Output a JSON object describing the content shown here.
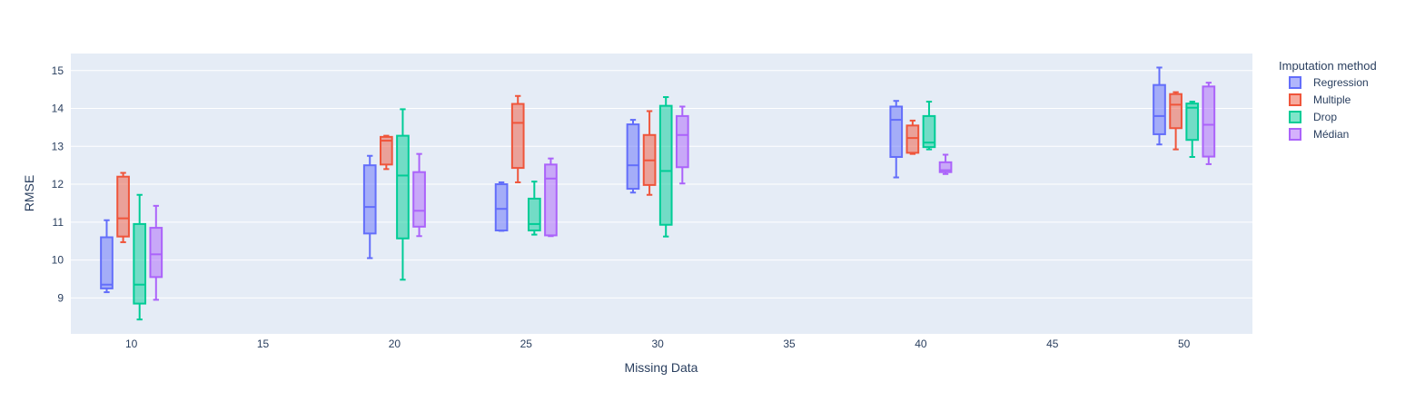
{
  "chart_data": {
    "type": "box",
    "xlabel": "Missing Data",
    "ylabel": "RMSE",
    "x_ticks": [
      10,
      15,
      20,
      25,
      30,
      35,
      40,
      45,
      50
    ],
    "y_ticks": [
      9,
      10,
      11,
      12,
      13,
      14,
      15
    ],
    "xlim": [
      7.7,
      52.6
    ],
    "ylim": [
      8.05,
      15.45
    ],
    "grid": true,
    "legend": {
      "title": "Imputation method",
      "placement": "top-right"
    },
    "series": [
      {
        "name": "Regression",
        "color": "#636efa",
        "boxes": [
          {
            "x": 10,
            "min": 9.15,
            "q1": 9.25,
            "median": 9.35,
            "q3": 10.6,
            "max": 11.05
          },
          {
            "x": 20,
            "min": 10.05,
            "q1": 10.7,
            "median": 11.4,
            "q3": 12.5,
            "max": 12.75
          },
          {
            "x": 25,
            "min": 10.77,
            "q1": 10.78,
            "median": 11.35,
            "q3": 12.0,
            "max": 12.05
          },
          {
            "x": 30,
            "min": 11.78,
            "q1": 11.88,
            "median": 12.5,
            "q3": 13.58,
            "max": 13.7
          },
          {
            "x": 40,
            "min": 12.18,
            "q1": 12.72,
            "median": 13.7,
            "q3": 14.05,
            "max": 14.2
          },
          {
            "x": 50,
            "min": 13.05,
            "q1": 13.32,
            "median": 13.8,
            "q3": 14.62,
            "max": 15.08
          }
        ]
      },
      {
        "name": "Multiple",
        "color": "#ef553b",
        "boxes": [
          {
            "x": 10,
            "min": 10.47,
            "q1": 10.62,
            "median": 11.1,
            "q3": 12.2,
            "max": 12.3
          },
          {
            "x": 20,
            "min": 12.4,
            "q1": 12.52,
            "median": 13.15,
            "q3": 13.25,
            "max": 13.28
          },
          {
            "x": 25,
            "min": 12.05,
            "q1": 12.43,
            "median": 13.62,
            "q3": 14.12,
            "max": 14.33
          },
          {
            "x": 30,
            "min": 11.72,
            "q1": 11.98,
            "median": 12.63,
            "q3": 13.3,
            "max": 13.93
          },
          {
            "x": 40,
            "min": 12.8,
            "q1": 12.83,
            "median": 13.22,
            "q3": 13.55,
            "max": 13.68
          },
          {
            "x": 50,
            "min": 12.92,
            "q1": 13.48,
            "median": 14.1,
            "q3": 14.38,
            "max": 14.43
          }
        ]
      },
      {
        "name": "Drop",
        "color": "#00cc96",
        "boxes": [
          {
            "x": 10,
            "min": 8.43,
            "q1": 8.85,
            "median": 9.35,
            "q3": 10.95,
            "max": 11.72
          },
          {
            "x": 20,
            "min": 9.48,
            "q1": 10.57,
            "median": 12.23,
            "q3": 13.28,
            "max": 13.98
          },
          {
            "x": 25,
            "min": 10.67,
            "q1": 10.78,
            "median": 10.95,
            "q3": 11.62,
            "max": 12.07
          },
          {
            "x": 30,
            "min": 10.62,
            "q1": 10.93,
            "median": 12.35,
            "q3": 14.07,
            "max": 14.3
          },
          {
            "x": 40,
            "min": 12.92,
            "q1": 12.98,
            "median": 13.1,
            "q3": 13.8,
            "max": 14.18
          },
          {
            "x": 50,
            "min": 12.72,
            "q1": 13.17,
            "median": 14.02,
            "q3": 14.13,
            "max": 14.18
          }
        ]
      },
      {
        "name": "Médian",
        "color": "#ab63fa",
        "boxes": [
          {
            "x": 10,
            "min": 8.95,
            "q1": 9.55,
            "median": 10.15,
            "q3": 10.85,
            "max": 11.43
          },
          {
            "x": 20,
            "min": 10.63,
            "q1": 10.88,
            "median": 11.3,
            "q3": 12.32,
            "max": 12.8
          },
          {
            "x": 25,
            "min": 10.63,
            "q1": 10.65,
            "median": 12.15,
            "q3": 12.52,
            "max": 12.68
          },
          {
            "x": 30,
            "min": 12.02,
            "q1": 12.45,
            "median": 13.3,
            "q3": 13.8,
            "max": 14.05
          },
          {
            "x": 40,
            "min": 12.27,
            "q1": 12.32,
            "median": 12.37,
            "q3": 12.58,
            "max": 12.78
          },
          {
            "x": 50,
            "min": 12.53,
            "q1": 12.73,
            "median": 13.57,
            "q3": 14.58,
            "max": 14.68
          }
        ]
      }
    ]
  }
}
